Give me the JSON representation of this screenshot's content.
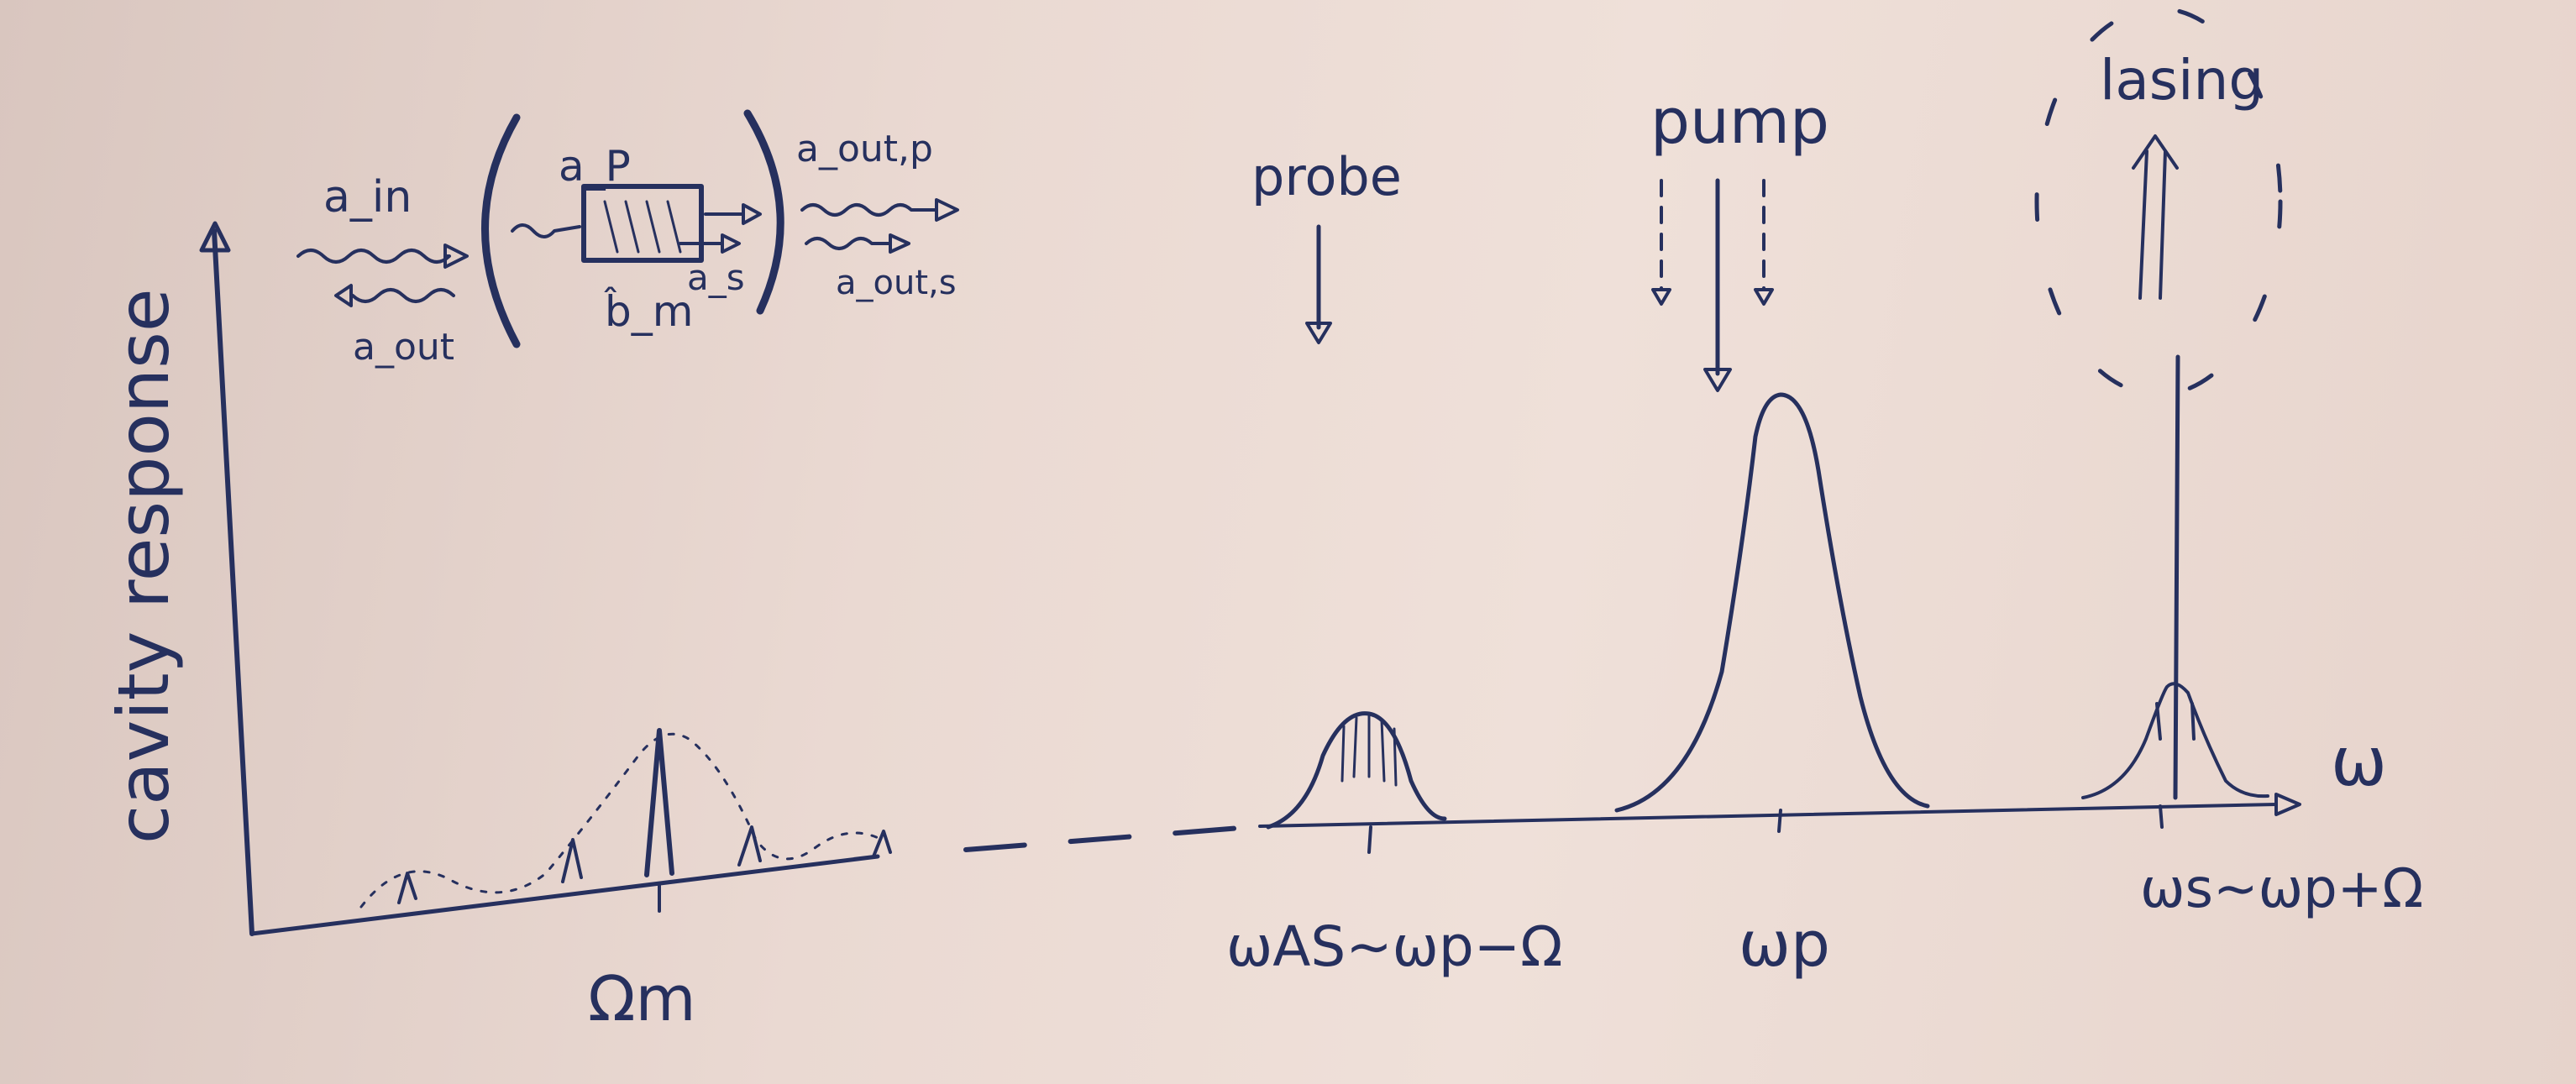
{
  "ylabel": "cavity response",
  "xlabel": "ω",
  "labels": {
    "omega_m": "Ωm",
    "omega_as": "ωAS∼ωp−Ω",
    "omega_p": "ωp",
    "omega_s": "ωs∼ωp+Ω",
    "probe": "probe",
    "pump": "pump",
    "lasing": "lasing"
  },
  "inset": {
    "a_in": "a_in",
    "a_out": "a_out",
    "a_p": "a_P",
    "a_s": "a_s",
    "b_m": "b̂_m",
    "a_out_p": "a_out,p",
    "a_out_s": "a_out,s"
  },
  "colors": {
    "ink": "#26305e",
    "board": "#e9d8d1"
  }
}
